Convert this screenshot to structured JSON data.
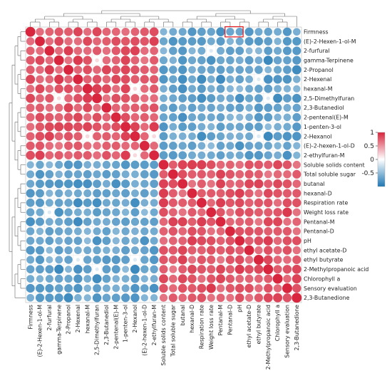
{
  "chart_data": {
    "type": "heatmap",
    "variables": [
      "Firmness",
      "(E)-2-Hexen-1-ol-M",
      "2-furfural",
      "gamma-Terpinene",
      "2-Propanol",
      "2-Hexenal",
      "hexanal-M",
      "2,5-Dimethylfuran",
      "2,3-Butanediol",
      "2-pentenal(E)-M",
      "1-penten-3-ol",
      "2-Hexanol",
      "(E)-2-hexen-1-ol-D",
      "2-ethylfuran-M",
      "Soluble solids content",
      "Total soluble sugar",
      "butanal",
      "hexanal-D",
      "Respiration rate",
      "Weight loss rate",
      "Pentanal-M",
      "Pentanal-D",
      "pH",
      "ethyl acetate-D",
      "ethyl butyrate",
      "2-Methylpropanoic acid",
      "Chlorophyll a",
      "Sensory evaluation",
      "2,3-Butanedione"
    ],
    "groups": [
      {
        "members": [
          0,
          1,
          2,
          3,
          4,
          5,
          6,
          7,
          8,
          9,
          10,
          11,
          12,
          13
        ],
        "sign": 1
      },
      {
        "members": [
          14,
          15,
          16,
          17,
          18,
          19,
          20,
          21,
          22,
          23,
          24,
          25,
          26,
          27,
          28
        ],
        "sign": -1
      }
    ],
    "highlighted_cell": {
      "row": 0,
      "col": 21
    },
    "colorbar": {
      "min": -1,
      "max": 1,
      "ticks": [
        1,
        0.5,
        0,
        -0.5
      ]
    },
    "colors": {
      "positive": "#d7263d",
      "neutral": "#ffffff",
      "negative": "#1f78b4"
    }
  }
}
